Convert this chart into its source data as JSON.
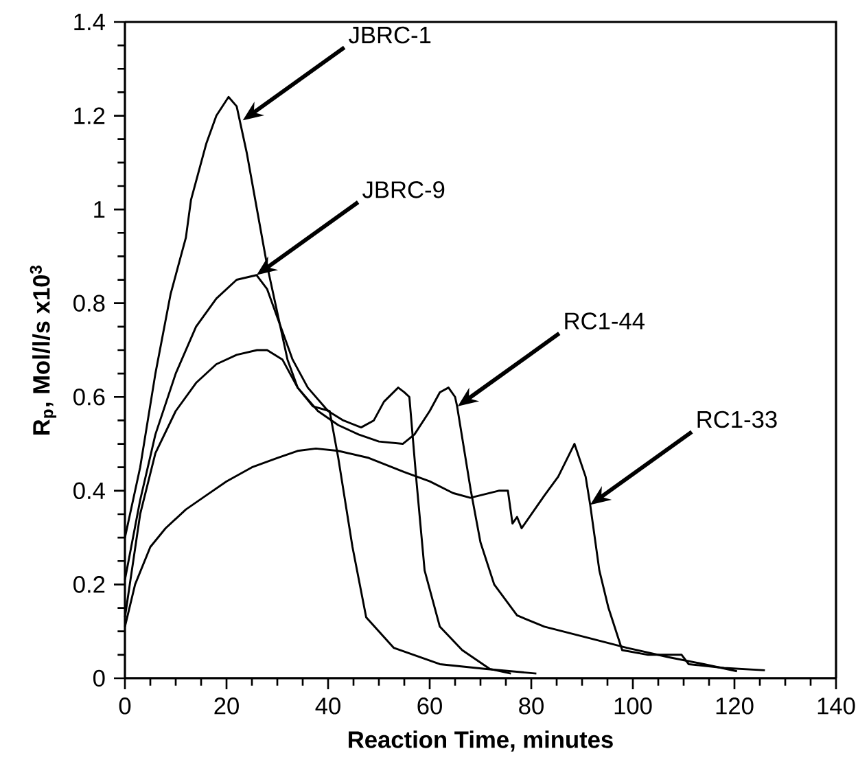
{
  "chart_data": {
    "type": "line",
    "xlabel": "Reaction Time, minutes",
    "ylabel": "R$_{p}$, Mol/l/s x10$^{3}$",
    "xlim": [
      0,
      140
    ],
    "ylim": [
      0,
      1.4
    ],
    "xticks": [
      0,
      20,
      40,
      60,
      80,
      100,
      120,
      140
    ],
    "yticks": [
      0,
      0.2,
      0.4,
      0.6,
      0.8,
      1,
      1.2,
      1.4
    ],
    "series": [
      {
        "color": "#000000",
        "x": [
          0,
          3,
          6,
          9,
          12,
          13,
          16,
          18,
          20.4,
          22,
          24,
          26,
          28,
          30,
          32,
          34,
          37,
          40.3,
          42,
          44.8,
          47.5,
          52.9,
          62,
          70.8,
          81
        ],
        "values": [
          0.3,
          0.45,
          0.65,
          0.82,
          0.94,
          1.02,
          1.14,
          1.2,
          1.24,
          1.22,
          1.12,
          1.0,
          0.88,
          0.78,
          0.68,
          0.62,
          0.58,
          0.57,
          0.47,
          0.28,
          0.13,
          0.065,
          0.03,
          0.02,
          0.01
        ]
      },
      {
        "color": "#000000",
        "x": [
          0,
          3,
          6,
          10,
          14,
          18,
          22,
          25.9,
          28,
          30,
          33,
          36,
          40,
          43,
          46.5,
          49,
          51,
          53.8,
          55,
          56,
          57.4,
          59,
          62,
          66.4,
          71.8,
          76
        ],
        "values": [
          0.21,
          0.38,
          0.52,
          0.65,
          0.75,
          0.81,
          0.85,
          0.86,
          0.83,
          0.77,
          0.68,
          0.62,
          0.57,
          0.55,
          0.535,
          0.55,
          0.59,
          0.62,
          0.61,
          0.6,
          0.42,
          0.23,
          0.11,
          0.06,
          0.02,
          0.01
        ]
      },
      {
        "color": "#000000",
        "x": [
          0,
          3,
          6,
          10,
          14,
          18,
          22,
          26,
          28,
          31,
          34,
          38,
          42,
          46,
          50,
          54.7,
          57,
          60,
          62,
          63.7,
          65,
          65.4,
          68.1,
          70,
          72.7,
          77.2,
          82.6,
          91.6,
          98.8,
          107,
          114,
          120.5
        ],
        "values": [
          0.13,
          0.35,
          0.48,
          0.57,
          0.63,
          0.67,
          0.69,
          0.7,
          0.7,
          0.68,
          0.62,
          0.57,
          0.54,
          0.52,
          0.505,
          0.5,
          0.52,
          0.57,
          0.61,
          0.62,
          0.6,
          0.58,
          0.4,
          0.29,
          0.2,
          0.134,
          0.11,
          0.085,
          0.065,
          0.045,
          0.03,
          0.015
        ]
      },
      {
        "color": "#000000",
        "x": [
          0,
          2,
          5,
          8,
          12,
          16,
          20,
          25,
          30,
          34,
          37.6,
          42,
          48,
          55,
          60,
          64.6,
          68,
          73.6,
          75.4,
          76.3,
          77.2,
          78.1,
          82.6,
          85.3,
          88.5,
          90.7,
          91.6,
          93.4,
          95.2,
          97.9,
          103,
          109.6,
          111,
          118,
          126
        ],
        "values": [
          0.11,
          0.2,
          0.28,
          0.32,
          0.36,
          0.39,
          0.42,
          0.45,
          0.47,
          0.485,
          0.49,
          0.485,
          0.47,
          0.44,
          0.42,
          0.395,
          0.385,
          0.4,
          0.4,
          0.33,
          0.344,
          0.32,
          0.39,
          0.43,
          0.5,
          0.43,
          0.37,
          0.23,
          0.15,
          0.06,
          0.05,
          0.05,
          0.03,
          0.022,
          0.017
        ]
      }
    ],
    "annotations": [
      {
        "text": "JBRC-1",
        "x": 23.2,
        "y": 1.19
      },
      {
        "text": "JBRC-9",
        "x": 25.9,
        "y": 0.86
      },
      {
        "text": "RC1-44",
        "x": 65.5,
        "y": 0.58
      },
      {
        "text": "RC1-33",
        "x": 91.6,
        "y": 0.37
      }
    ]
  }
}
